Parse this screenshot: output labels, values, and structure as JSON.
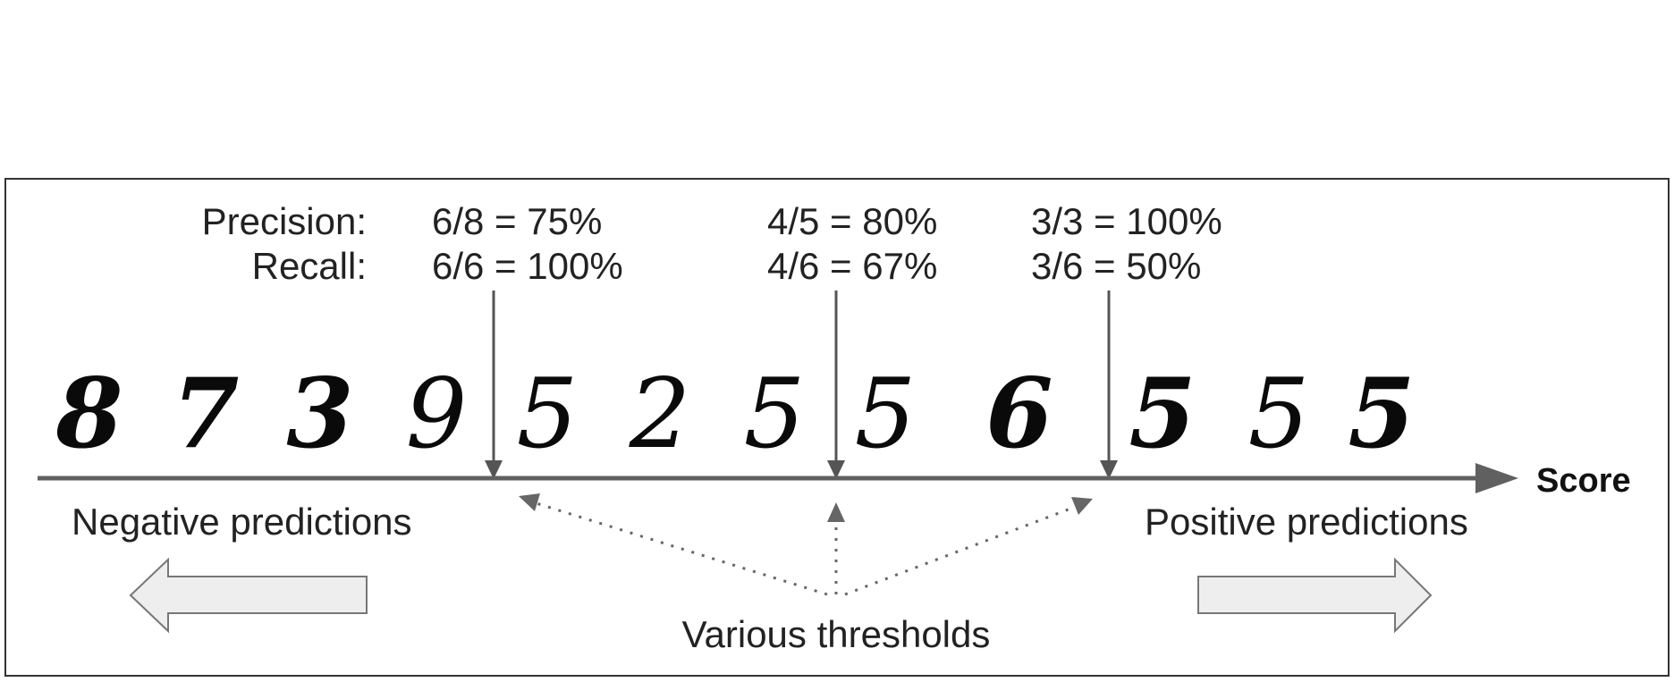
{
  "precision_label": "Precision:",
  "recall_label": "Recall:",
  "thresholds": [
    {
      "precision": "6/8 = 75%",
      "recall": "6/6 = 100%"
    },
    {
      "precision": "4/5 = 80%",
      "recall": "4/6 = 67%"
    },
    {
      "precision": "3/3 = 100%",
      "recall": "3/6 = 50%"
    }
  ],
  "axis_label": "Score",
  "negative_label": "Negative predictions",
  "positive_label": "Positive predictions",
  "thresholds_label": "Various thresholds",
  "digits": [
    "8",
    "7",
    "3",
    "9",
    "5",
    "2",
    "5",
    "5",
    "6",
    "5",
    "5",
    "5"
  ]
}
